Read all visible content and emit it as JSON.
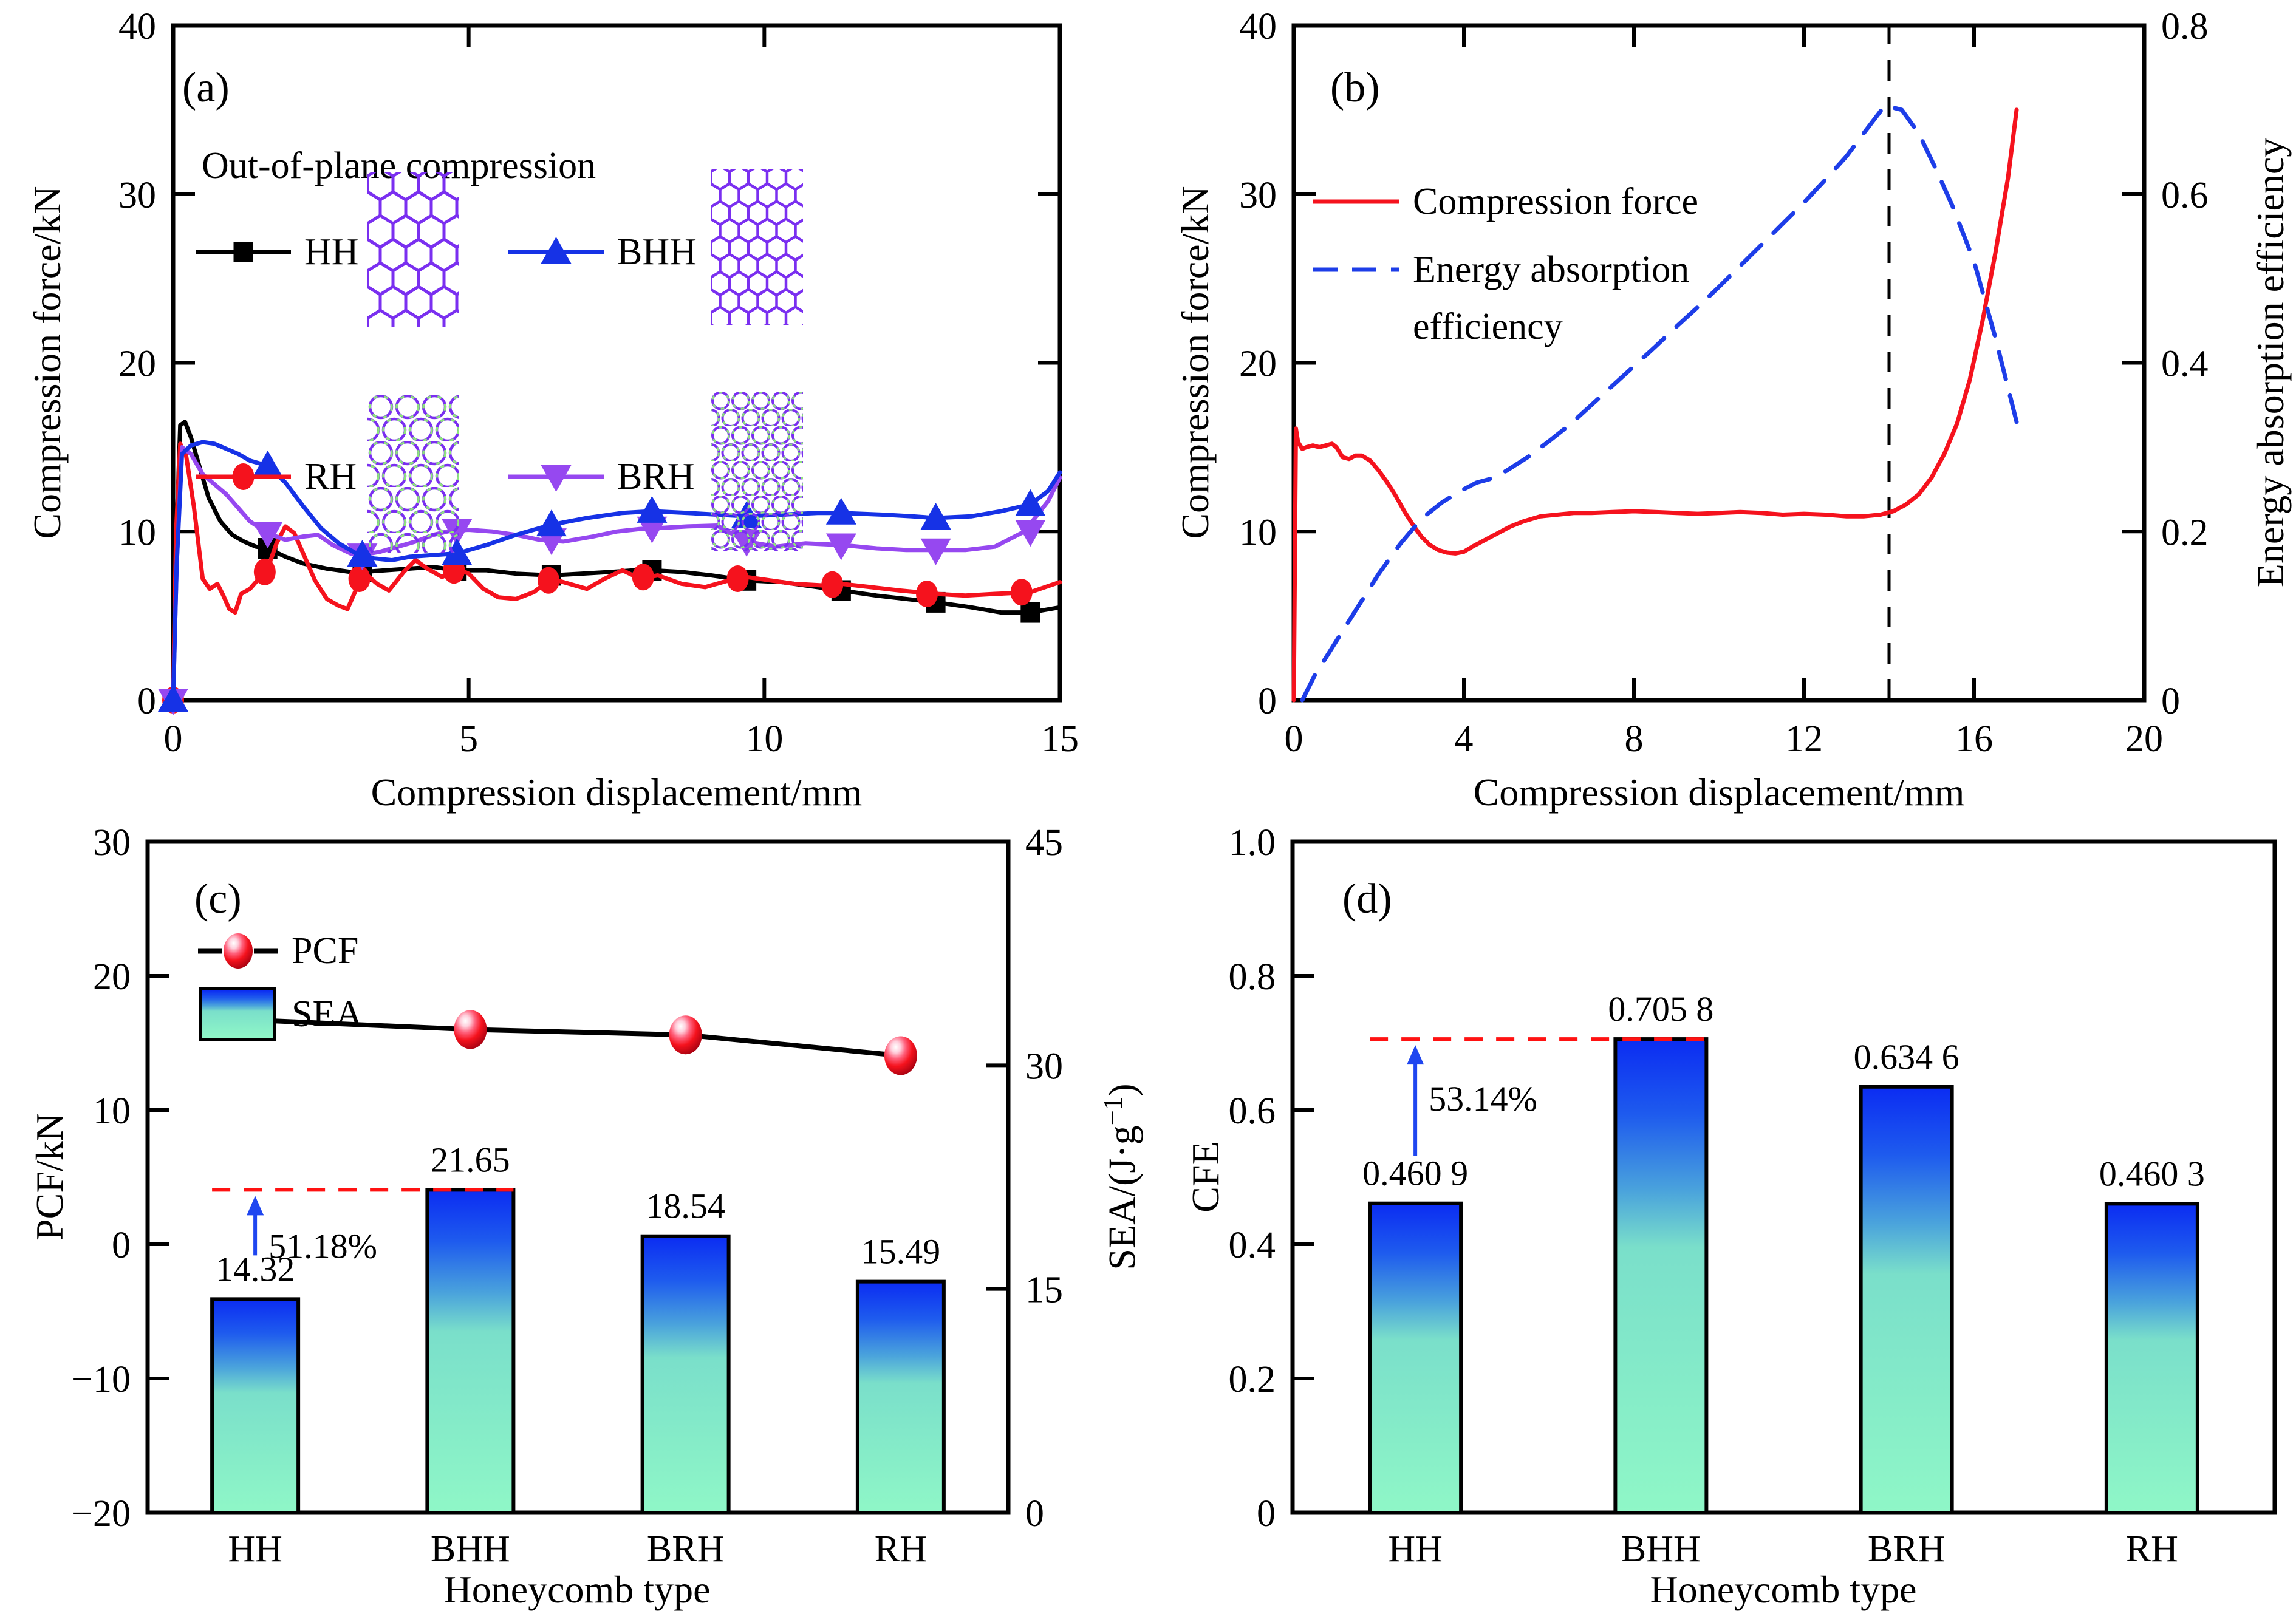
{
  "figure_bg": "#ffffff",
  "icons": {
    "honeycomb_purple": "#7a2ff0",
    "honeycomb_green": "#8ee87a"
  },
  "chart_data": [
    {
      "id": "a",
      "type": "line",
      "panel_label": "(a)",
      "title": "Out-of-plane compression",
      "xlabel": "Compression displacement/mm",
      "ylabel": "Compression force/kN",
      "xlim": [
        0,
        15
      ],
      "ylim": [
        0,
        40
      ],
      "xticks": [
        {
          "v": 0,
          "t": "0"
        },
        {
          "v": 5,
          "t": "5"
        },
        {
          "v": 10,
          "t": "10"
        },
        {
          "v": 15,
          "t": "15"
        }
      ],
      "yticks": [
        {
          "v": 0,
          "t": "0"
        },
        {
          "v": 10,
          "t": "10"
        },
        {
          "v": 20,
          "t": "20"
        },
        {
          "v": 30,
          "t": "30"
        },
        {
          "v": 40,
          "t": "40"
        }
      ],
      "grid": false,
      "legend_position": "upper-left",
      "series": [
        {
          "name": "HH",
          "color": "#000000",
          "marker": "square",
          "x": [
            0,
            0.05,
            0.12,
            0.2,
            0.3,
            0.45,
            0.6,
            0.8,
            1.0,
            1.2,
            1.4,
            1.6,
            1.9,
            2.2,
            2.6,
            3.0,
            3.2,
            3.6,
            4.0,
            4.4,
            4.8,
            5.3,
            5.8,
            6.4,
            6.9,
            7.4,
            7.8,
            8.1,
            8.6,
            9.1,
            9.7,
            10.3,
            10.9,
            11.3,
            11.9,
            12.4,
            12.9,
            13.5,
            14.0,
            14.5,
            15.0
          ],
          "y": [
            0,
            9.0,
            16.3,
            16.5,
            15.6,
            13.8,
            12.0,
            10.6,
            9.8,
            9.4,
            9.1,
            9.0,
            8.5,
            8.1,
            7.8,
            7.6,
            7.6,
            7.7,
            7.8,
            7.9,
            7.7,
            7.7,
            7.5,
            7.4,
            7.5,
            7.6,
            7.7,
            7.7,
            7.6,
            7.4,
            7.1,
            7.0,
            6.7,
            6.5,
            6.2,
            6.0,
            5.8,
            5.5,
            5.2,
            5.2,
            5.5
          ],
          "marker_points": [
            [
              0,
              0
            ],
            [
              1.6,
              9.0
            ],
            [
              3.2,
              7.6
            ],
            [
              4.8,
              7.7
            ],
            [
              6.4,
              7.4
            ],
            [
              8.1,
              7.7
            ],
            [
              9.7,
              7.1
            ],
            [
              11.3,
              6.5
            ],
            [
              12.9,
              5.8
            ],
            [
              14.5,
              5.2
            ]
          ]
        },
        {
          "name": "RH",
          "color": "#f5121d",
          "marker": "circle",
          "x": [
            0,
            0.05,
            0.12,
            0.22,
            0.35,
            0.5,
            0.62,
            0.75,
            0.85,
            0.95,
            1.05,
            1.15,
            1.3,
            1.45,
            1.6,
            1.75,
            1.9,
            2.05,
            2.2,
            2.4,
            2.6,
            2.8,
            2.95,
            3.1,
            3.25,
            3.45,
            3.65,
            3.9,
            4.1,
            4.3,
            4.55,
            4.8,
            5.0,
            5.25,
            5.5,
            5.8,
            6.1,
            6.4,
            6.7,
            7.0,
            7.3,
            7.6,
            7.9,
            8.2,
            8.6,
            9.0,
            9.4,
            9.7,
            10.1,
            10.5,
            11.0,
            11.3,
            11.8,
            12.3,
            12.9,
            13.4,
            13.9,
            14.5,
            15.0
          ],
          "y": [
            0,
            10.0,
            15.2,
            14.5,
            11.5,
            7.2,
            6.6,
            6.9,
            6.2,
            5.4,
            5.2,
            6.3,
            6.6,
            7.2,
            7.8,
            9.3,
            10.3,
            9.9,
            8.7,
            7.1,
            6.0,
            5.6,
            5.4,
            6.6,
            7.5,
            6.9,
            6.5,
            7.6,
            8.3,
            7.8,
            7.3,
            7.8,
            7.5,
            6.6,
            6.1,
            6.0,
            6.4,
            7.2,
            6.9,
            6.6,
            7.2,
            7.7,
            7.2,
            7.4,
            6.9,
            6.7,
            7.1,
            7.3,
            7.1,
            6.9,
            6.8,
            6.9,
            6.7,
            6.5,
            6.3,
            6.2,
            6.3,
            6.4,
            7.0
          ],
          "marker_points": [
            [
              0,
              0
            ],
            [
              1.55,
              7.6
            ],
            [
              3.15,
              7.2
            ],
            [
              4.75,
              7.7
            ],
            [
              6.35,
              7.1
            ],
            [
              7.95,
              7.3
            ],
            [
              9.55,
              7.2
            ],
            [
              11.15,
              6.85
            ],
            [
              12.75,
              6.3
            ],
            [
              14.35,
              6.4
            ]
          ]
        },
        {
          "name": "BRH",
          "color": "#9648f0",
          "marker": "triangle-down",
          "x": [
            0,
            0.06,
            0.15,
            0.3,
            0.5,
            0.7,
            0.9,
            1.1,
            1.3,
            1.6,
            1.9,
            2.2,
            2.45,
            2.7,
            3.0,
            3.2,
            3.5,
            3.8,
            4.1,
            4.4,
            4.7,
            5.0,
            5.4,
            5.8,
            6.2,
            6.6,
            7.1,
            7.5,
            7.9,
            8.2,
            8.7,
            9.2,
            9.7,
            10.2,
            10.7,
            11.3,
            11.9,
            12.4,
            12.9,
            13.4,
            13.9,
            14.4,
            14.8,
            15.0
          ],
          "y": [
            0,
            8.0,
            15.0,
            14.6,
            13.4,
            12.8,
            12.2,
            11.4,
            10.6,
            9.9,
            9.5,
            9.7,
            9.8,
            9.2,
            8.7,
            8.6,
            8.8,
            9.1,
            9.4,
            9.8,
            10.05,
            10.1,
            10.0,
            9.8,
            9.5,
            9.4,
            9.7,
            10.0,
            10.15,
            10.2,
            10.3,
            10.35,
            9.4,
            9.1,
            9.3,
            9.2,
            9.0,
            8.9,
            8.9,
            8.9,
            9.1,
            10.0,
            11.8,
            13.2
          ],
          "marker_points": [
            [
              0,
              0
            ],
            [
              1.6,
              9.9
            ],
            [
              3.2,
              8.6
            ],
            [
              4.8,
              10.05
            ],
            [
              6.4,
              9.5
            ],
            [
              8.1,
              10.2
            ],
            [
              9.7,
              9.4
            ],
            [
              11.3,
              9.2
            ],
            [
              12.9,
              8.9
            ],
            [
              14.5,
              10.0
            ]
          ]
        },
        {
          "name": "BHH",
          "color": "#1632e6",
          "marker": "triangle-up",
          "x": [
            0,
            0.06,
            0.15,
            0.3,
            0.5,
            0.7,
            0.9,
            1.1,
            1.3,
            1.6,
            1.9,
            2.2,
            2.5,
            2.8,
            3.1,
            3.4,
            3.7,
            4.0,
            4.4,
            4.8,
            5.3,
            5.8,
            6.4,
            7.0,
            7.6,
            8.1,
            8.7,
            9.2,
            9.7,
            10.3,
            10.9,
            11.3,
            12.0,
            12.5,
            12.9,
            13.5,
            14.0,
            14.5,
            14.8,
            15.0
          ],
          "y": [
            0,
            8.0,
            14.6,
            15.1,
            15.3,
            15.2,
            14.9,
            14.6,
            14.2,
            13.9,
            12.9,
            11.5,
            10.2,
            9.3,
            8.7,
            8.4,
            8.3,
            8.5,
            8.6,
            8.7,
            9.2,
            9.8,
            10.4,
            10.8,
            11.1,
            11.2,
            11.1,
            11.0,
            10.9,
            11.0,
            11.1,
            11.1,
            11.0,
            10.9,
            10.8,
            10.9,
            11.2,
            11.6,
            12.4,
            13.5
          ],
          "marker_points": [
            [
              0,
              0
            ],
            [
              1.6,
              13.9
            ],
            [
              3.2,
              8.6
            ],
            [
              4.8,
              8.7
            ],
            [
              6.4,
              10.4
            ],
            [
              8.1,
              11.2
            ],
            [
              9.7,
              10.9
            ],
            [
              11.3,
              11.1
            ],
            [
              12.9,
              10.8
            ],
            [
              14.5,
              11.6
            ]
          ]
        }
      ]
    },
    {
      "id": "b",
      "type": "line",
      "panel_label": "(b)",
      "xlabel": "Compression displacement/mm",
      "ylabel_left": "Compression force/kN",
      "ylabel_right": "Energy absorption efficiency",
      "legend2_line1": "Energy absorption",
      "legend2_line2": "efficiency",
      "xlim": [
        0,
        20
      ],
      "ylim_left": [
        0,
        40
      ],
      "ylim_right": [
        0,
        0.8
      ],
      "xticks": [
        {
          "v": 0,
          "t": "0"
        },
        {
          "v": 4,
          "t": "4"
        },
        {
          "v": 8,
          "t": "8"
        },
        {
          "v": 12,
          "t": "12"
        },
        {
          "v": 16,
          "t": "16"
        },
        {
          "v": 20,
          "t": "20"
        }
      ],
      "yticks_left": [
        {
          "v": 0,
          "t": "0"
        },
        {
          "v": 10,
          "t": "10"
        },
        {
          "v": 20,
          "t": "20"
        },
        {
          "v": 30,
          "t": "30"
        },
        {
          "v": 40,
          "t": "40"
        }
      ],
      "yticks_right": [
        {
          "v": 0,
          "t": "0"
        },
        {
          "v": 0.2,
          "t": "0.2"
        },
        {
          "v": 0.4,
          "t": "0.4"
        },
        {
          "v": 0.6,
          "t": "0.6"
        },
        {
          "v": 0.8,
          "t": "0.8"
        }
      ],
      "annotations": {
        "vline_x": 14,
        "vline_color": "#000000",
        "vline_style": "dashed"
      },
      "series": [
        {
          "name": "Compression force",
          "axis": "left",
          "color": "#f5121d",
          "style": "solid",
          "x": [
            0,
            0.05,
            0.1,
            0.2,
            0.3,
            0.45,
            0.6,
            0.75,
            0.9,
            1.0,
            1.15,
            1.3,
            1.45,
            1.6,
            1.8,
            2.0,
            2.2,
            2.4,
            2.6,
            2.8,
            3.0,
            3.2,
            3.4,
            3.6,
            3.8,
            4.0,
            4.2,
            4.5,
            4.8,
            5.1,
            5.4,
            5.8,
            6.2,
            6.6,
            7.0,
            7.5,
            8.0,
            8.5,
            9.0,
            9.5,
            10.0,
            10.5,
            11.0,
            11.5,
            12.0,
            12.5,
            13.0,
            13.4,
            13.8,
            14.1,
            14.4,
            14.7,
            15.0,
            15.3,
            15.6,
            15.9,
            16.2,
            16.5,
            16.8,
            17.0
          ],
          "y": [
            0,
            16.1,
            15.3,
            14.9,
            15.0,
            15.1,
            15.0,
            15.1,
            15.2,
            15.0,
            14.4,
            14.3,
            14.5,
            14.5,
            14.2,
            13.6,
            12.9,
            12.1,
            11.2,
            10.4,
            9.7,
            9.2,
            8.9,
            8.75,
            8.7,
            8.8,
            9.1,
            9.5,
            9.9,
            10.3,
            10.6,
            10.9,
            11.0,
            11.1,
            11.1,
            11.15,
            11.2,
            11.15,
            11.1,
            11.05,
            11.1,
            11.15,
            11.1,
            11.0,
            11.05,
            11.0,
            10.9,
            10.9,
            11.0,
            11.2,
            11.6,
            12.2,
            13.2,
            14.6,
            16.4,
            19.0,
            22.5,
            26.5,
            31.0,
            35.0
          ]
        },
        {
          "name": "Energy absorption efficiency",
          "axis": "right",
          "color": "#1d3de8",
          "style": "dashed",
          "x": [
            0.2,
            0.5,
            1.0,
            1.5,
            2.0,
            2.5,
            3.0,
            3.5,
            4.0,
            4.3,
            4.6,
            5.0,
            5.5,
            6.0,
            6.5,
            7.0,
            7.5,
            8.0,
            8.5,
            9.0,
            9.5,
            10.0,
            10.5,
            11.0,
            11.5,
            12.0,
            12.5,
            13.0,
            13.4,
            13.9,
            14.3,
            14.7,
            15.1,
            15.5,
            16.0,
            16.5,
            17.0
          ],
          "y": [
            0,
            0.03,
            0.07,
            0.11,
            0.15,
            0.185,
            0.215,
            0.235,
            0.25,
            0.258,
            0.262,
            0.272,
            0.288,
            0.307,
            0.327,
            0.35,
            0.373,
            0.396,
            0.419,
            0.443,
            0.466,
            0.49,
            0.515,
            0.54,
            0.565,
            0.59,
            0.617,
            0.645,
            0.672,
            0.705,
            0.7,
            0.672,
            0.63,
            0.585,
            0.52,
            0.43,
            0.33
          ]
        }
      ]
    },
    {
      "id": "c",
      "type": "bar-line",
      "panel_label": "(c)",
      "xlabel": "Honeycomb type",
      "ylabel_left": "PCF/kN",
      "ylabel_right_parts": [
        "SEA/(J·g",
        "−1",
        ")"
      ],
      "categories": [
        "HH",
        "BHH",
        "BRH",
        "RH"
      ],
      "ylim_left": [
        -20,
        30
      ],
      "yticks_left": [
        {
          "v": -20,
          "t": "−20"
        },
        {
          "v": -10,
          "t": "−10"
        },
        {
          "v": 0,
          "t": "0"
        },
        {
          "v": 10,
          "t": "10"
        },
        {
          "v": 20,
          "t": "20"
        },
        {
          "v": 30,
          "t": "30"
        }
      ],
      "ylim_right": [
        0,
        45
      ],
      "yticks_right": [
        {
          "v": 0,
          "t": "0"
        },
        {
          "v": 15,
          "t": "15"
        },
        {
          "v": 30,
          "t": "30"
        },
        {
          "v": 45,
          "t": "45"
        }
      ],
      "bars": {
        "name": "SEA",
        "axis": "right",
        "values": [
          14.32,
          21.65,
          18.54,
          15.49
        ],
        "labels": [
          "14.32",
          "21.65",
          "18.54",
          "15.49"
        ],
        "gradient": [
          "#0b2cf2",
          "#1e5bee",
          "#4aa3dc",
          "#7adfca",
          "#8ff7c7"
        ]
      },
      "line": {
        "name": "PCF",
        "axis": "left",
        "color": "#000000",
        "marker": "sphere",
        "values": [
          16.7,
          16.0,
          15.6,
          14.05
        ]
      },
      "annotation": {
        "dashed_level": 21.65,
        "dashed_color": "#ff1212",
        "arrow_color": "#1f46f0",
        "percent_label": "51.18%",
        "arrow_category": 0,
        "arrow_from": 14.32,
        "span": [
          0,
          1
        ]
      }
    },
    {
      "id": "d",
      "type": "bar",
      "panel_label": "(d)",
      "xlabel": "Honeycomb type",
      "ylabel": "CFE",
      "categories": [
        "HH",
        "BHH",
        "BRH",
        "RH"
      ],
      "ylim": [
        0,
        1.0
      ],
      "yticks": [
        {
          "v": 0,
          "t": "0"
        },
        {
          "v": 0.2,
          "t": "0.2"
        },
        {
          "v": 0.4,
          "t": "0.4"
        },
        {
          "v": 0.6,
          "t": "0.6"
        },
        {
          "v": 0.8,
          "t": "0.8"
        },
        {
          "v": 1.0,
          "t": "1.0"
        }
      ],
      "bars": {
        "values": [
          0.4609,
          0.7058,
          0.6346,
          0.4603
        ],
        "labels": [
          "0.460 9",
          "0.705 8",
          "0.634 6",
          "0.460 3"
        ],
        "gradient": [
          "#0b2cf2",
          "#1e5bee",
          "#4aa3dc",
          "#7adfca",
          "#8ff7c7"
        ]
      },
      "annotation": {
        "dashed_level": 0.7058,
        "dashed_color": "#ff1212",
        "arrow_color": "#1f46f0",
        "percent_label": "53.14%",
        "arrow_category": 0,
        "arrow_from": 0.4609,
        "span": [
          0,
          1
        ]
      }
    }
  ]
}
